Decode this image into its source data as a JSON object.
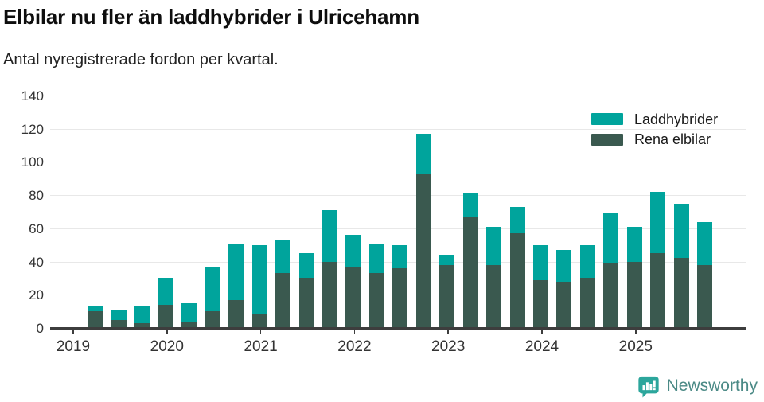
{
  "header": {
    "title": "Elbilar nu fler än laddhybrider i Ulricehamn",
    "subtitle": "Antal nyregistrerade fordon per kvartal."
  },
  "chart_data": {
    "type": "bar",
    "stacked": true,
    "title": "Elbilar nu fler än laddhybrider i Ulricehamn",
    "subtitle": "Antal nyregistrerade fordon per kvartal.",
    "grid": true,
    "legend_position": "top-right",
    "ylim": [
      0,
      140
    ],
    "ytick_step": 20,
    "yticks": [
      0,
      20,
      40,
      60,
      80,
      100,
      120,
      140
    ],
    "year_labels": [
      "2019",
      "2020",
      "2021",
      "2022",
      "2023",
      "2024",
      "2025"
    ],
    "quarters": [
      "2019 Q1",
      "2019 Q2",
      "2019 Q3",
      "2019 Q4",
      "2020 Q1",
      "2020 Q2",
      "2020 Q3",
      "2020 Q4",
      "2021 Q1",
      "2021 Q2",
      "2021 Q3",
      "2021 Q4",
      "2022 Q1",
      "2022 Q2",
      "2022 Q3",
      "2022 Q4",
      "2023 Q1",
      "2023 Q2",
      "2023 Q3",
      "2023 Q4",
      "2024 Q1",
      "2024 Q2",
      "2024 Q3",
      "2024 Q4",
      "2025 Q1",
      "2025 Q2",
      "2025 Q3",
      "2025 Q4"
    ],
    "series": [
      {
        "name": "Laddhybrider",
        "color": "#00A49C",
        "stack_order": "top",
        "values": [
          0,
          3,
          6,
          10,
          16,
          11,
          27,
          34,
          42,
          20,
          15,
          31,
          19,
          18,
          14,
          24,
          6,
          14,
          23,
          16,
          21,
          19,
          20,
          30,
          21,
          37,
          33,
          26
        ]
      },
      {
        "name": "Rena elbilar",
        "color": "#3A594F",
        "stack_order": "bottom",
        "values": [
          0,
          10,
          5,
          3,
          14,
          4,
          10,
          17,
          8,
          33,
          30,
          40,
          37,
          33,
          36,
          93,
          38,
          67,
          38,
          57,
          29,
          28,
          30,
          39,
          40,
          45,
          42,
          38
        ]
      }
    ],
    "totals": [
      0,
      13,
      11,
      13,
      30,
      15,
      37,
      51,
      50,
      53,
      45,
      71,
      56,
      51,
      50,
      117,
      44,
      81,
      61,
      73,
      50,
      47,
      50,
      69,
      61,
      82,
      75,
      64
    ]
  },
  "footer": {
    "brand": "Newsworthy"
  },
  "colors": {
    "accent_teal": "#00A49C",
    "accent_dark_green": "#3A594F",
    "axis": "#3d3d3d",
    "gridline": "#e8e8e8",
    "brand_teal": "#2ca69c",
    "brand_text": "#4b8a86"
  }
}
